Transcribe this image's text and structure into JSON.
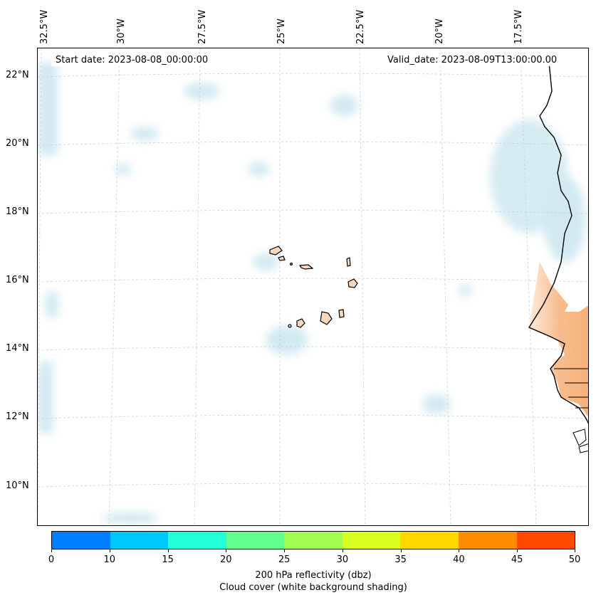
{
  "map": {
    "start_date": "Start date: 2023-08-08_00:00:00",
    "valid_date": "Valid_date: 2023-08-09T13:00:00.00",
    "longitude_labels": [
      "32.5°W",
      "30°W",
      "27.5°W",
      "25°W",
      "22.5°W",
      "20°W",
      "17.5°W"
    ],
    "latitude_labels": [
      "22°N",
      "20°N",
      "18°N",
      "16°N",
      "14°N",
      "12°N",
      "10°N"
    ],
    "cloud_color": "#add8e6",
    "land_color": "#f4a460",
    "gridline_color": "#cccccc"
  },
  "colorbar": {
    "ticks": [
      "0",
      "10",
      "15",
      "20",
      "25",
      "30",
      "35",
      "40",
      "45",
      "50"
    ],
    "colors": [
      "#0080ff",
      "#00c8ff",
      "#20ffd8",
      "#60ff90",
      "#a0ff50",
      "#d8ff20",
      "#ffd800",
      "#ff8c00",
      "#ff4800"
    ],
    "label_line1": "200 hPa reflectivity (dbz)",
    "label_line2": "Cloud cover (white background shading)"
  }
}
